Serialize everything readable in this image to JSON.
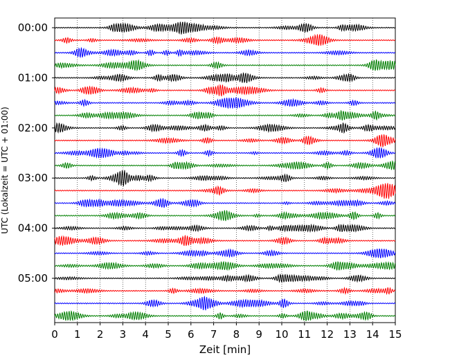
{
  "chart_data": {
    "type": "line",
    "title": "",
    "xlabel": "Zeit  [min]",
    "ylabel": "UTC (Lokalzeit = UTC + 01:00)",
    "xlim": [
      0,
      15
    ],
    "x_ticks": [
      "0",
      "1",
      "2",
      "3",
      "4",
      "5",
      "6",
      "7",
      "8",
      "9",
      "10",
      "11",
      "12",
      "13",
      "14",
      "15"
    ],
    "y_ticks": [
      "00:00",
      "01:00",
      "02:00",
      "03:00",
      "04:00",
      "05:00"
    ],
    "grid": "vertical dotted",
    "trace_interval_min": 15,
    "trace_colors": [
      "#000000",
      "#ff0000",
      "#0000ff",
      "#007f00"
    ],
    "trace_count": 24,
    "trace_start_times": [
      "00:00",
      "00:15",
      "00:30",
      "00:45",
      "01:00",
      "01:15",
      "01:30",
      "01:45",
      "02:00",
      "02:15",
      "02:30",
      "02:45",
      "03:00",
      "03:15",
      "03:30",
      "03:45",
      "04:00",
      "04:15",
      "04:30",
      "04:45",
      "05:00",
      "05:15",
      "05:30",
      "05:45"
    ]
  }
}
